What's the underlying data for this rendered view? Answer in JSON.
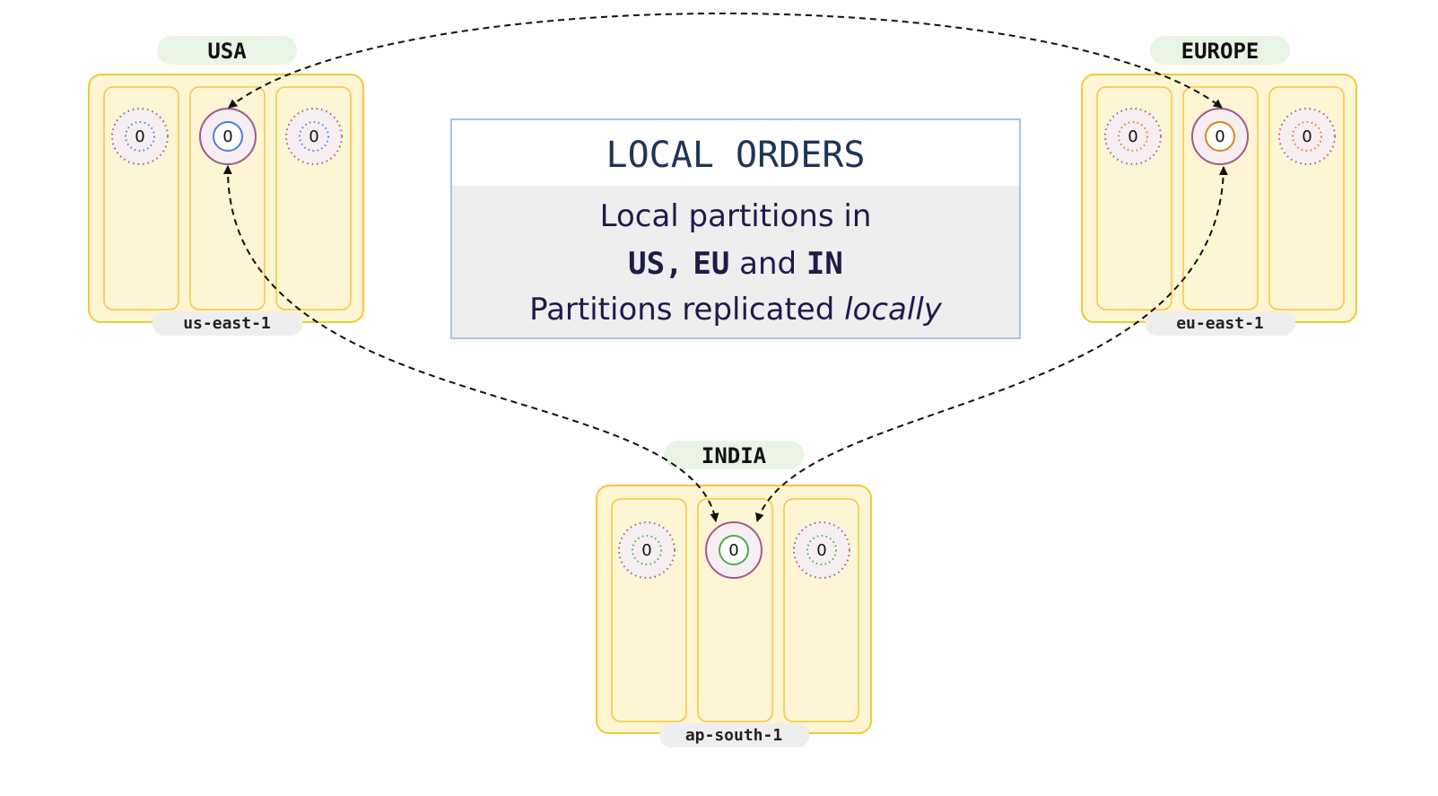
{
  "colors": {
    "cluster_fill": "#fdf5d3",
    "cluster_stroke": "#f0c93c",
    "label_pill": "#e9f5e4",
    "cluster_pill": "#eeeeee",
    "ring_stroke": "#a05a8c",
    "info_border": "#a8c4e4",
    "info_body": "#eeeeee"
  },
  "regions": [
    {
      "name": "USA",
      "cluster": "us-east-1",
      "accent": "#4a7fe0",
      "partitions": [
        "0",
        "0",
        "0"
      ],
      "primary_index": 1
    },
    {
      "name": "EUROPE",
      "cluster": "eu-east-1",
      "accent": "#e07f1c",
      "partitions": [
        "0",
        "0",
        "0"
      ],
      "primary_index": 1
    },
    {
      "name": "INDIA",
      "cluster": "ap-south-1",
      "accent": "#4fa84f",
      "partitions": [
        "0",
        "0",
        "0"
      ],
      "primary_index": 1
    }
  ],
  "info": {
    "title": "LOCAL ORDERS",
    "line1": "Local partitions in",
    "line2": {
      "us": "US",
      "sep": ",",
      "eu": "EU",
      "and": "and",
      "in": "IN"
    },
    "line3": {
      "text": "Partitions replicated",
      "italic": "locally"
    }
  }
}
